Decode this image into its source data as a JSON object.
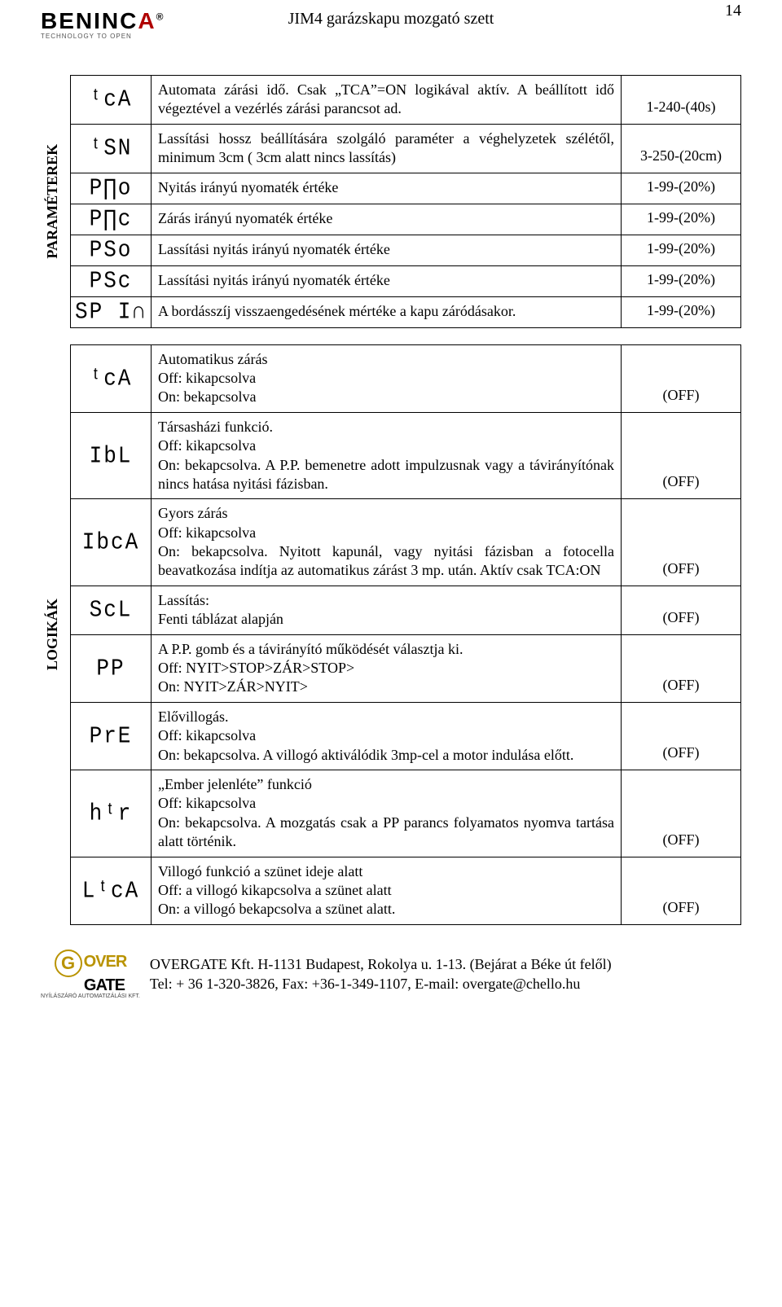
{
  "header": {
    "logo_main_1": "BENINC",
    "logo_main_2": "A",
    "logo_sub": "TECHNOLOGY TO OPEN",
    "doc_title": "JIM4 garázskapu mozgató szett",
    "page_number": "14"
  },
  "sections": {
    "params": {
      "label": "PARAMÉTEREK",
      "rows": [
        {
          "code": "tcA",
          "desc": "Automata zárási idő. Csak „TCA”=ON logikával aktív. A beállított idő végeztével a vezérlés zárási parancsot ad.",
          "val": "1-240-(40s)"
        },
        {
          "code": "tSN",
          "desc": "Lassítási hossz beállítására szolgáló paraméter a véghelyzetek szélétől, minimum 3cm ( 3cm alatt nincs lassítás)",
          "val": "3-250-(20cm)"
        },
        {
          "code": "PNo",
          "desc": "Nyitás irányú nyomaték értéke",
          "val": "1-99-(20%)"
        },
        {
          "code": "PNc",
          "desc": "Zárás irányú nyomaték értéke",
          "val": "1-99-(20%)"
        },
        {
          "code": "PSo",
          "desc": "Lassítási nyitás irányú nyomaték értéke",
          "val": "1-99-(20%)"
        },
        {
          "code": "PSc",
          "desc": "Lassítási nyitás irányú nyomaték értéke",
          "val": "1-99-(20%)"
        },
        {
          "code": "SP In",
          "desc": "A bordásszíj visszaengedésének mértéke a kapu záródásakor.",
          "val": "1-99-(20%)"
        }
      ]
    },
    "logics": {
      "label": "LOGIKÁK",
      "rows": [
        {
          "code": "tcA",
          "desc": "Automatikus zárás\nOff: kikapcsolva\nOn: bekapcsolva",
          "val": "(OFF)"
        },
        {
          "code": "IbL",
          "desc": "Társasházi funkció.\nOff: kikapcsolva\nOn: bekapcsolva. A P.P. bemenetre adott impulzusnak vagy a távirányítónak nincs hatása nyitási fázisban.",
          "val": "(OFF)"
        },
        {
          "code": "IbcA",
          "desc": "Gyors zárás\nOff: kikapcsolva\nOn: bekapcsolva. Nyitott kapunál, vagy nyitási fázisban a fotocella beavatkozása indítja az automatikus zárást 3 mp. után. Aktív csak TCA:ON",
          "val": "(OFF)"
        },
        {
          "code": "ScL",
          "desc": "Lassítás:\nFenti táblázat alapján",
          "val": "(OFF)"
        },
        {
          "code": "PP",
          "desc": "A P.P. gomb és a távirányító működését választja ki.\nOff: NYIT>STOP>ZÁR>STOP>\nOn: NYIT>ZÁR>NYIT>",
          "val": "(OFF)"
        },
        {
          "code": "PrE",
          "desc": "Elővillogás.\nOff: kikapcsolva\nOn: bekapcsolva. A villogó aktiválódik 3mp-cel a motor indulása előtt.",
          "val": "(OFF)"
        },
        {
          "code": "htr",
          "desc": "„Ember jelenléte” funkció\nOff: kikapcsolva\nOn: bekapcsolva. A mozgatás csak a PP parancs folyamatos nyomva tartása alatt történik.",
          "val": "(OFF)"
        },
        {
          "code": "LtcA",
          "desc": "Villogó funkció a szünet ideje alatt\nOff: a villogó kikapcsolva a szünet alatt\nOn: a villogó bekapcsolva a szünet alatt.",
          "val": "(OFF)"
        }
      ]
    }
  },
  "codeGlyphs": {
    "tcA": "ᵗcA",
    "tSN": "ᵗSN",
    "PNo": "P∏o",
    "PNc": "P∏c",
    "PSo": "PSo",
    "PSc": "PSc",
    "SP In": "SP I∩",
    "IbL": "IbL",
    "IbcA": "IbcA",
    "ScL": "ScL",
    "PP": "PP",
    "PrE": "PrE",
    "htr": "hᵗr",
    "LtcA": "LᵗcA"
  },
  "footer": {
    "logo_over": "OVER",
    "logo_gate": "GATE",
    "logo_sub": "NYÍLÁSZÁRÓ AUTOMATIZÁLÁSI KFT.",
    "line1": "OVERGATE Kft. H-1131 Budapest, Rokolya u. 1-13. (Bejárat a Béke út felől)",
    "line2": "Tel: + 36 1-320-3826, Fax: +36-1-349-1107, E-mail: overgate@chello.hu"
  }
}
